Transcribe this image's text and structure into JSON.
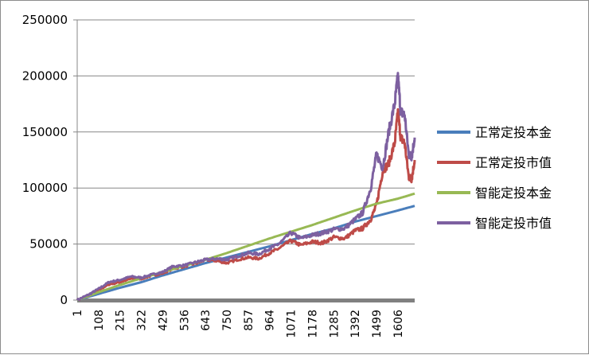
{
  "chart_data": {
    "type": "line",
    "title": "",
    "xlabel": "",
    "ylabel": "",
    "ylim": [
      0,
      250000
    ],
    "yticks": [
      0,
      50000,
      100000,
      150000,
      200000,
      250000
    ],
    "ytick_labels": [
      "0",
      "50000",
      "100000",
      "150000",
      "200000",
      "250000"
    ],
    "xlim": [
      1,
      1690
    ],
    "xtick_labels": [
      "1",
      "108",
      "215",
      "322",
      "429",
      "536",
      "643",
      "750",
      "857",
      "964",
      "1071",
      "1178",
      "1285",
      "1392",
      "1499",
      "1606"
    ],
    "xtick_values": [
      1,
      108,
      215,
      322,
      429,
      536,
      643,
      750,
      857,
      964,
      1071,
      1178,
      1285,
      1392,
      1499,
      1606
    ],
    "grid": "horizontal",
    "legend_position": "right",
    "series": [
      {
        "name": "正常定投本金",
        "color": "#4a7ebb",
        "x": [
          1,
          108,
          215,
          322,
          429,
          536,
          643,
          750,
          857,
          964,
          1071,
          1178,
          1285,
          1392,
          1499,
          1606,
          1690
        ],
        "values": [
          0,
          5500,
          11000,
          16000,
          22000,
          27500,
          33000,
          38000,
          43000,
          48000,
          53500,
          59000,
          64000,
          70000,
          75000,
          80000,
          84000
        ]
      },
      {
        "name": "正常定投市值",
        "color": "#be4b48",
        "x": [
          1,
          60,
          108,
          160,
          215,
          270,
          322,
          380,
          429,
          480,
          536,
          600,
          643,
          700,
          750,
          800,
          857,
          910,
          964,
          1010,
          1071,
          1120,
          1178,
          1230,
          1285,
          1340,
          1392,
          1430,
          1470,
          1499,
          1530,
          1560,
          1590,
          1606,
          1620,
          1640,
          1660,
          1675,
          1690
        ],
        "values": [
          0,
          4000,
          9000,
          14000,
          16000,
          19000,
          19000,
          22000,
          24000,
          28000,
          30000,
          33000,
          36000,
          35000,
          33000,
          36000,
          38000,
          37000,
          42000,
          46000,
          53000,
          49000,
          52000,
          51000,
          56000,
          55000,
          62000,
          64000,
          72000,
          85000,
          115000,
          122000,
          140000,
          168000,
          145000,
          140000,
          110000,
          108000,
          125000
        ]
      },
      {
        "name": "智能定投本金",
        "color": "#98b954",
        "x": [
          1,
          108,
          215,
          322,
          429,
          536,
          643,
          750,
          857,
          964,
          1071,
          1178,
          1285,
          1392,
          1499,
          1606,
          1690
        ],
        "values": [
          0,
          7000,
          13500,
          19500,
          25000,
          30500,
          36000,
          42000,
          48500,
          55000,
          61000,
          67000,
          73500,
          80000,
          86000,
          90500,
          95000
        ]
      },
      {
        "name": "智能定投市值",
        "color": "#7d60a0",
        "x": [
          1,
          60,
          108,
          160,
          215,
          270,
          322,
          380,
          429,
          480,
          536,
          600,
          643,
          700,
          750,
          800,
          857,
          910,
          964,
          1010,
          1071,
          1120,
          1178,
          1230,
          1285,
          1340,
          1392,
          1430,
          1470,
          1499,
          1530,
          1560,
          1590,
          1606,
          1620,
          1640,
          1660,
          1675,
          1690
        ],
        "values": [
          0,
          5000,
          10000,
          16000,
          18000,
          21000,
          20000,
          23000,
          25000,
          30000,
          31000,
          34000,
          36000,
          37000,
          36000,
          39000,
          42000,
          41000,
          46000,
          50000,
          60000,
          55000,
          58000,
          60000,
          63000,
          64000,
          72000,
          78000,
          100000,
          130000,
          118000,
          150000,
          175000,
          200000,
          168000,
          165000,
          130000,
          128000,
          145000
        ]
      }
    ]
  }
}
